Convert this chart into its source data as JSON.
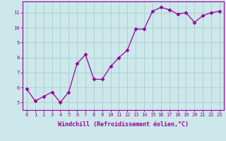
{
  "x": [
    0,
    1,
    2,
    3,
    4,
    5,
    6,
    7,
    8,
    9,
    10,
    11,
    12,
    13,
    14,
    15,
    16,
    17,
    18,
    19,
    20,
    21,
    22,
    23
  ],
  "y": [
    5.9,
    5.1,
    5.4,
    5.7,
    5.0,
    5.7,
    7.6,
    8.2,
    6.55,
    6.55,
    7.4,
    8.0,
    8.5,
    9.9,
    9.9,
    11.1,
    11.35,
    11.2,
    10.9,
    11.0,
    10.35,
    10.8,
    11.0,
    11.1
  ],
  "line_color": "#990099",
  "marker": "D",
  "marker_size": 2.5,
  "background_color": "#cce8eb",
  "grid_color": "#aacccc",
  "xlabel": "Windchill (Refroidissement éolien,°C)",
  "xlabel_color": "#990099",
  "tick_color": "#990099",
  "xlim": [
    -0.5,
    23.5
  ],
  "ylim": [
    4.5,
    11.75
  ],
  "yticks": [
    5,
    6,
    7,
    8,
    9,
    10,
    11
  ],
  "xticks": [
    0,
    1,
    2,
    3,
    4,
    5,
    6,
    7,
    8,
    9,
    10,
    11,
    12,
    13,
    14,
    15,
    16,
    17,
    18,
    19,
    20,
    21,
    22,
    23
  ]
}
